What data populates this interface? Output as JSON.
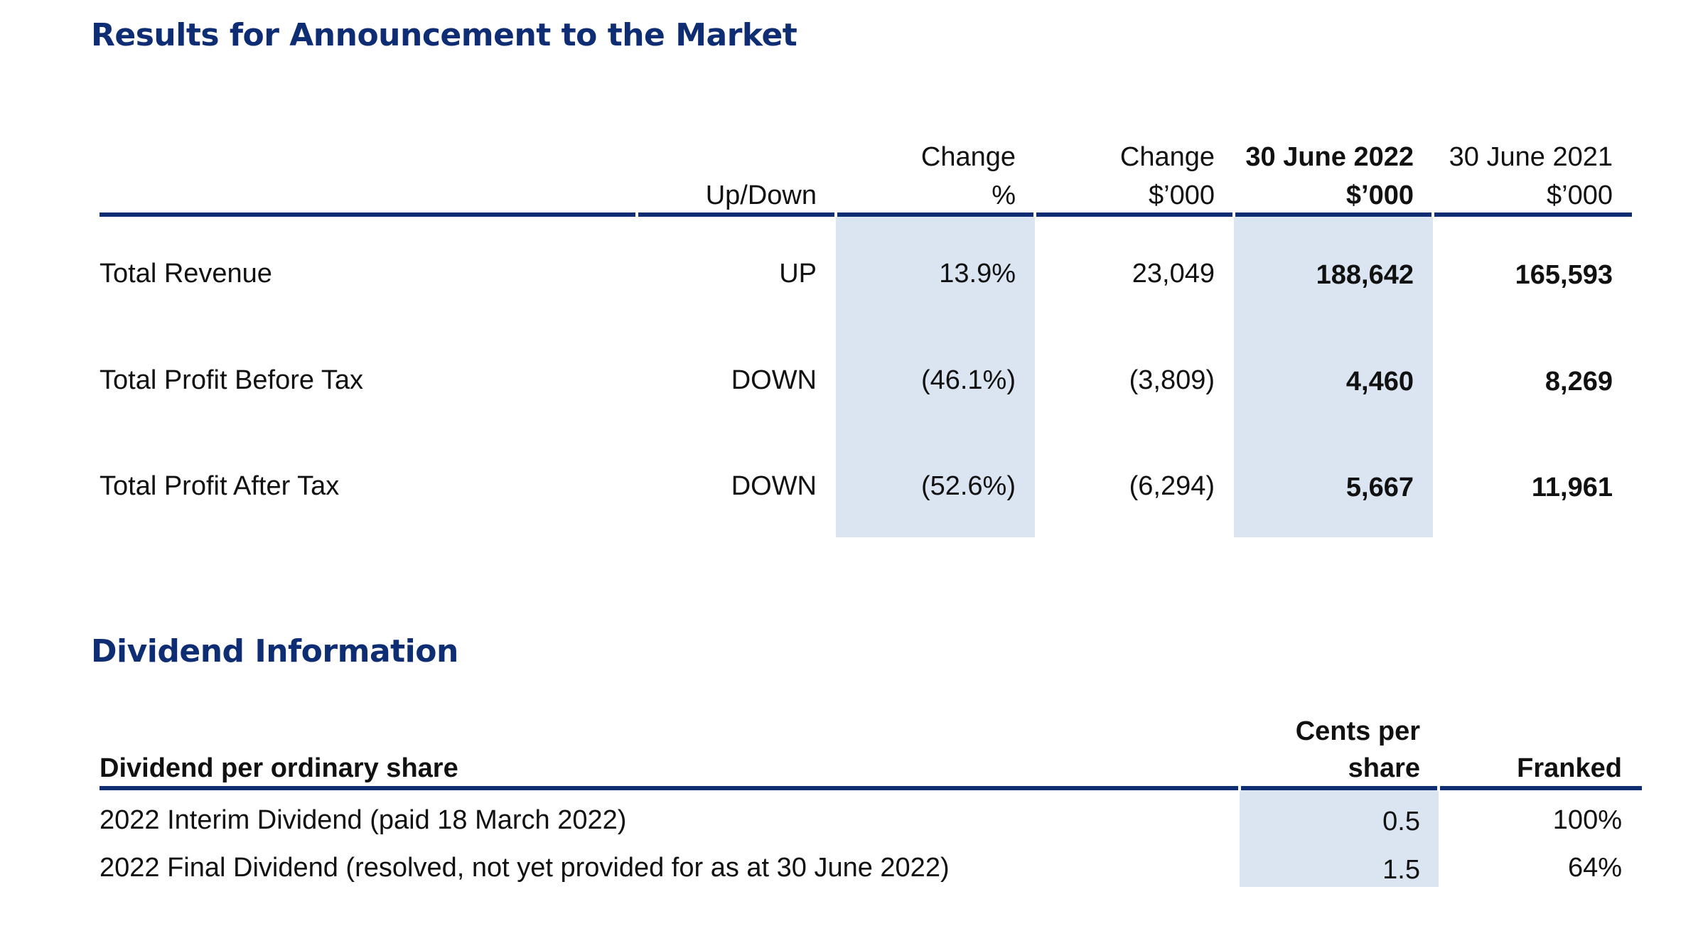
{
  "results": {
    "title": "Results for Announcement to the Market",
    "headers": {
      "updown": "Up/Down",
      "change_pct_line1": "Change",
      "change_pct_line2": "%",
      "change_abs_line1": "Change",
      "change_abs_line2": "$’000",
      "fy2022_line1": "30 June 2022",
      "fy2022_line2": "$’000",
      "fy2021_line1": "30 June 2021",
      "fy2021_line2": "$’000"
    },
    "rows": [
      {
        "label": "Total Revenue",
        "updown": "UP",
        "change_pct": "13.9%",
        "change_abs": "23,049",
        "fy2022": "188,642",
        "fy2021": "165,593"
      },
      {
        "label": "Total Profit Before Tax",
        "updown": "DOWN",
        "change_pct": "(46.1%)",
        "change_abs": "(3,809)",
        "fy2022": "4,460",
        "fy2021": "8,269"
      },
      {
        "label": "Total Profit After Tax",
        "updown": "DOWN",
        "change_pct": "(52.6%)",
        "change_abs": "(6,294)",
        "fy2022": "5,667",
        "fy2021": "11,961"
      }
    ]
  },
  "dividends": {
    "title": "Dividend Information",
    "headers": {
      "label": "Dividend per ordinary share",
      "cents_line1": "Cents per",
      "cents_line2": "share",
      "franked": "Franked"
    },
    "rows": [
      {
        "label": "2022 Interim Dividend (paid 18 March 2022)",
        "cents": "0.5",
        "franked": "100%"
      },
      {
        "label": "2022 Final Dividend (resolved, not yet provided for as at 30 June 2022)",
        "cents": "1.5",
        "franked": "64%"
      }
    ]
  },
  "colors": {
    "heading": "#0f2d73",
    "rule": "#0f2d73",
    "shade": "#dbe5f1"
  }
}
